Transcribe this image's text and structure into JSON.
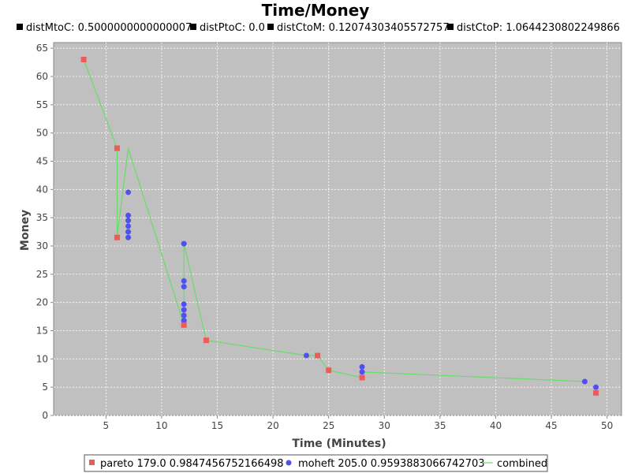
{
  "chart_data": {
    "type": "scatter",
    "title": "Time/Money",
    "subtitles": [
      "distMtoC: 0.5000000000000007",
      "distPtoC: 0.0",
      "distCtoM: 0.12074303405572757",
      "distCtoP: 1.0644230802249866"
    ],
    "xlabel": "Time (Minutes)",
    "ylabel": "Money",
    "xlim": [
      0.3,
      51.3
    ],
    "ylim": [
      0,
      66
    ],
    "xticks": [
      5,
      10,
      15,
      20,
      25,
      30,
      35,
      40,
      45,
      50
    ],
    "yticks": [
      0,
      5,
      10,
      15,
      20,
      25,
      30,
      35,
      40,
      45,
      50,
      55,
      60,
      65
    ],
    "grid": true,
    "legend_position": "bottom",
    "colors": {
      "plot_background": "#c0c0c0",
      "pareto": "#f05a5a",
      "moheft": "#5050f0",
      "combined": "#66dd66"
    },
    "series": [
      {
        "name": "pareto 179.0 0.9847456752166498",
        "marker": "square",
        "points": [
          [
            3,
            63
          ],
          [
            6,
            47.3
          ],
          [
            6,
            31.5
          ],
          [
            12,
            16
          ],
          [
            14,
            13.3
          ],
          [
            24,
            10.6
          ],
          [
            25,
            8
          ],
          [
            28,
            6.7
          ],
          [
            49,
            4
          ]
        ]
      },
      {
        "name": "moheft 205.0 0.9593883066742703",
        "marker": "circle",
        "points": [
          [
            7,
            39.5
          ],
          [
            7,
            35.4
          ],
          [
            7,
            34.5
          ],
          [
            7,
            33.5
          ],
          [
            7,
            32.5
          ],
          [
            7,
            31.5
          ],
          [
            12,
            30.4
          ],
          [
            12,
            23.8
          ],
          [
            12,
            22.8
          ],
          [
            12,
            19.7
          ],
          [
            12,
            18.7
          ],
          [
            12,
            17.7
          ],
          [
            12,
            16.8
          ],
          [
            23,
            10.6
          ],
          [
            28,
            8.6
          ],
          [
            28,
            7.7
          ],
          [
            48,
            6
          ],
          [
            49,
            5
          ]
        ]
      },
      {
        "name": "combined",
        "marker": "line",
        "points": [
          [
            3,
            63
          ],
          [
            6,
            47.3
          ],
          [
            6,
            31.5
          ],
          [
            7,
            47.3
          ],
          [
            12,
            16
          ],
          [
            12,
            30.4
          ],
          [
            14,
            13.3
          ],
          [
            23,
            10.6
          ],
          [
            24,
            10.6
          ],
          [
            25,
            8
          ],
          [
            28,
            6.7
          ],
          [
            28,
            7.7
          ],
          [
            48,
            6
          ]
        ]
      }
    ]
  }
}
